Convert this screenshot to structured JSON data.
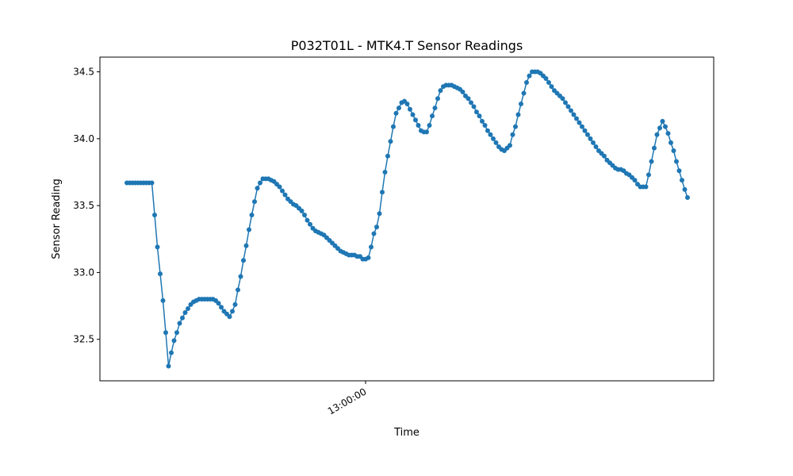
{
  "chart_data": {
    "type": "line",
    "title": "P032T01L - MTK4.T Sensor Readings",
    "x_label": "Time",
    "y_label": "Sensor Reading",
    "x": [
      "11:34:00",
      "11:35:00",
      "11:36:00",
      "11:37:00",
      "11:38:00",
      "11:39:00",
      "11:40:00",
      "11:41:00",
      "11:42:00",
      "11:43:00",
      "11:44:00",
      "11:45:00",
      "11:46:00",
      "11:47:00",
      "11:48:00",
      "11:49:00",
      "11:50:00",
      "11:51:00",
      "11:52:00",
      "11:53:00",
      "11:54:00",
      "11:55:00",
      "11:56:00",
      "11:57:00",
      "11:58:00",
      "11:59:00",
      "12:00:00",
      "12:01:00",
      "12:02:00",
      "12:03:00",
      "12:04:00",
      "12:05:00",
      "12:06:00",
      "12:07:00",
      "12:08:00",
      "12:09:00",
      "12:10:00",
      "12:11:00",
      "12:12:00",
      "12:13:00",
      "12:14:00",
      "12:15:00",
      "12:16:00",
      "12:17:00",
      "12:18:00",
      "12:19:00",
      "12:20:00",
      "12:21:00",
      "12:22:00",
      "12:23:00",
      "12:24:00",
      "12:25:00",
      "12:26:00",
      "12:27:00",
      "12:28:00",
      "12:29:00",
      "12:30:00",
      "12:31:00",
      "12:32:00",
      "12:33:00",
      "12:34:00",
      "12:35:00",
      "12:36:00",
      "12:37:00",
      "12:38:00",
      "12:39:00",
      "12:40:00",
      "12:41:00",
      "12:42:00",
      "12:43:00",
      "12:44:00",
      "12:45:00",
      "12:46:00",
      "12:47:00",
      "12:48:00",
      "12:49:00",
      "12:50:00",
      "12:51:00",
      "12:52:00",
      "12:53:00",
      "12:54:00",
      "12:55:00",
      "12:56:00",
      "12:57:00",
      "12:58:00",
      "12:59:00",
      "13:00:00",
      "13:01:00",
      "13:02:00",
      "13:03:00",
      "13:04:00",
      "13:05:00",
      "13:06:00",
      "13:07:00",
      "13:08:00",
      "13:09:00",
      "13:10:00",
      "13:11:00",
      "13:12:00",
      "13:13:00",
      "13:14:00",
      "13:15:00",
      "13:16:00",
      "13:17:00",
      "13:18:00",
      "13:19:00",
      "13:20:00",
      "13:21:00",
      "13:22:00",
      "13:23:00",
      "13:24:00",
      "13:25:00",
      "13:26:00",
      "13:27:00",
      "13:28:00",
      "13:29:00",
      "13:30:00",
      "13:31:00",
      "13:32:00",
      "13:33:00",
      "13:34:00",
      "13:35:00",
      "13:36:00",
      "13:37:00",
      "13:38:00",
      "13:39:00",
      "13:40:00",
      "13:41:00",
      "13:42:00",
      "13:43:00",
      "13:44:00",
      "13:45:00",
      "13:46:00",
      "13:47:00",
      "13:48:00",
      "13:49:00",
      "13:50:00",
      "13:51:00",
      "13:52:00",
      "13:53:00",
      "13:54:00",
      "13:55:00",
      "13:56:00",
      "13:57:00",
      "13:58:00",
      "13:59:00",
      "14:00:00",
      "14:01:00",
      "14:02:00",
      "14:03:00",
      "14:04:00",
      "14:05:00",
      "14:06:00",
      "14:07:00",
      "14:08:00",
      "14:09:00",
      "14:10:00",
      "14:11:00",
      "14:12:00",
      "14:13:00",
      "14:14:00",
      "14:15:00",
      "14:16:00",
      "14:17:00",
      "14:18:00",
      "14:19:00",
      "14:20:00",
      "14:21:00",
      "14:22:00",
      "14:23:00",
      "14:24:00",
      "14:25:00",
      "14:26:00",
      "14:27:00",
      "14:28:00",
      "14:29:00",
      "14:30:00",
      "14:31:00",
      "14:32:00",
      "14:33:00",
      "14:34:00",
      "14:35:00",
      "14:36:00",
      "14:37:00",
      "14:38:00",
      "14:39:00",
      "14:40:00",
      "14:41:00",
      "14:42:00",
      "14:43:00",
      "14:44:00",
      "14:45:00",
      "14:46:00",
      "14:47:00",
      "14:48:00",
      "14:49:00",
      "14:50:00",
      "14:51:00",
      "14:52:00",
      "14:53:00",
      "14:54:00",
      "14:55:00",
      "14:56:00"
    ],
    "series": [
      {
        "color": "#1f77b4",
        "values": [
          33.67,
          33.67,
          33.67,
          33.67,
          33.67,
          33.67,
          33.67,
          33.67,
          33.67,
          33.67,
          33.43,
          33.19,
          32.99,
          32.79,
          32.55,
          32.3,
          32.4,
          32.49,
          32.55,
          32.62,
          32.66,
          32.7,
          32.73,
          32.76,
          32.78,
          32.79,
          32.8,
          32.8,
          32.8,
          32.8,
          32.8,
          32.8,
          32.79,
          32.77,
          32.74,
          32.71,
          32.69,
          32.67,
          32.71,
          32.76,
          32.87,
          32.97,
          33.09,
          33.2,
          33.32,
          33.43,
          33.53,
          33.63,
          33.67,
          33.7,
          33.7,
          33.7,
          33.69,
          33.68,
          33.66,
          33.64,
          33.61,
          33.58,
          33.55,
          33.53,
          33.51,
          33.5,
          33.48,
          33.46,
          33.43,
          33.39,
          33.36,
          33.33,
          33.31,
          33.3,
          33.29,
          33.28,
          33.26,
          33.24,
          33.22,
          33.2,
          33.18,
          33.16,
          33.15,
          33.14,
          33.13,
          33.13,
          33.13,
          33.12,
          33.12,
          33.1,
          33.1,
          33.11,
          33.19,
          33.29,
          33.34,
          33.44,
          33.6,
          33.75,
          33.87,
          33.98,
          34.09,
          34.19,
          34.23,
          34.27,
          34.28,
          34.26,
          34.22,
          34.18,
          34.14,
          34.1,
          34.06,
          34.05,
          34.05,
          34.1,
          34.17,
          34.23,
          34.3,
          34.36,
          34.39,
          34.4,
          34.4,
          34.4,
          34.39,
          34.38,
          34.37,
          34.35,
          34.32,
          34.3,
          34.27,
          34.24,
          34.2,
          34.17,
          34.13,
          34.1,
          34.06,
          34.03,
          34.0,
          33.97,
          33.94,
          33.92,
          33.91,
          33.93,
          33.95,
          34.03,
          34.09,
          34.18,
          34.26,
          34.34,
          34.42,
          34.47,
          34.5,
          34.5,
          34.5,
          34.49,
          34.47,
          34.45,
          34.42,
          34.39,
          34.36,
          34.34,
          34.32,
          34.3,
          34.27,
          34.24,
          34.21,
          34.18,
          34.15,
          34.12,
          34.09,
          34.06,
          34.03,
          34.0,
          33.97,
          33.94,
          33.91,
          33.89,
          33.87,
          33.84,
          33.82,
          33.8,
          33.78,
          33.77,
          33.77,
          33.76,
          33.74,
          33.73,
          33.71,
          33.69,
          33.66,
          33.64,
          33.64,
          33.64,
          33.73,
          33.83,
          33.93,
          34.03,
          34.08,
          34.13,
          34.09,
          34.04,
          33.97,
          33.91,
          33.83,
          33.76,
          33.69,
          33.62,
          33.56
        ]
      }
    ],
    "xlim": [
      "11:24:17",
      "15:05:26"
    ],
    "xticks": [
      "13:00:00"
    ],
    "ylim": [
      32.19,
      34.61
    ],
    "yticks": [
      {
        "value": 32.5,
        "label": "32.5"
      },
      {
        "value": 33,
        "label": "33.0"
      },
      {
        "value": 33.5,
        "label": "33.5"
      },
      {
        "value": 34,
        "label": "34.0"
      },
      {
        "value": 34.5,
        "label": "34.5"
      }
    ],
    "grid": false
  }
}
